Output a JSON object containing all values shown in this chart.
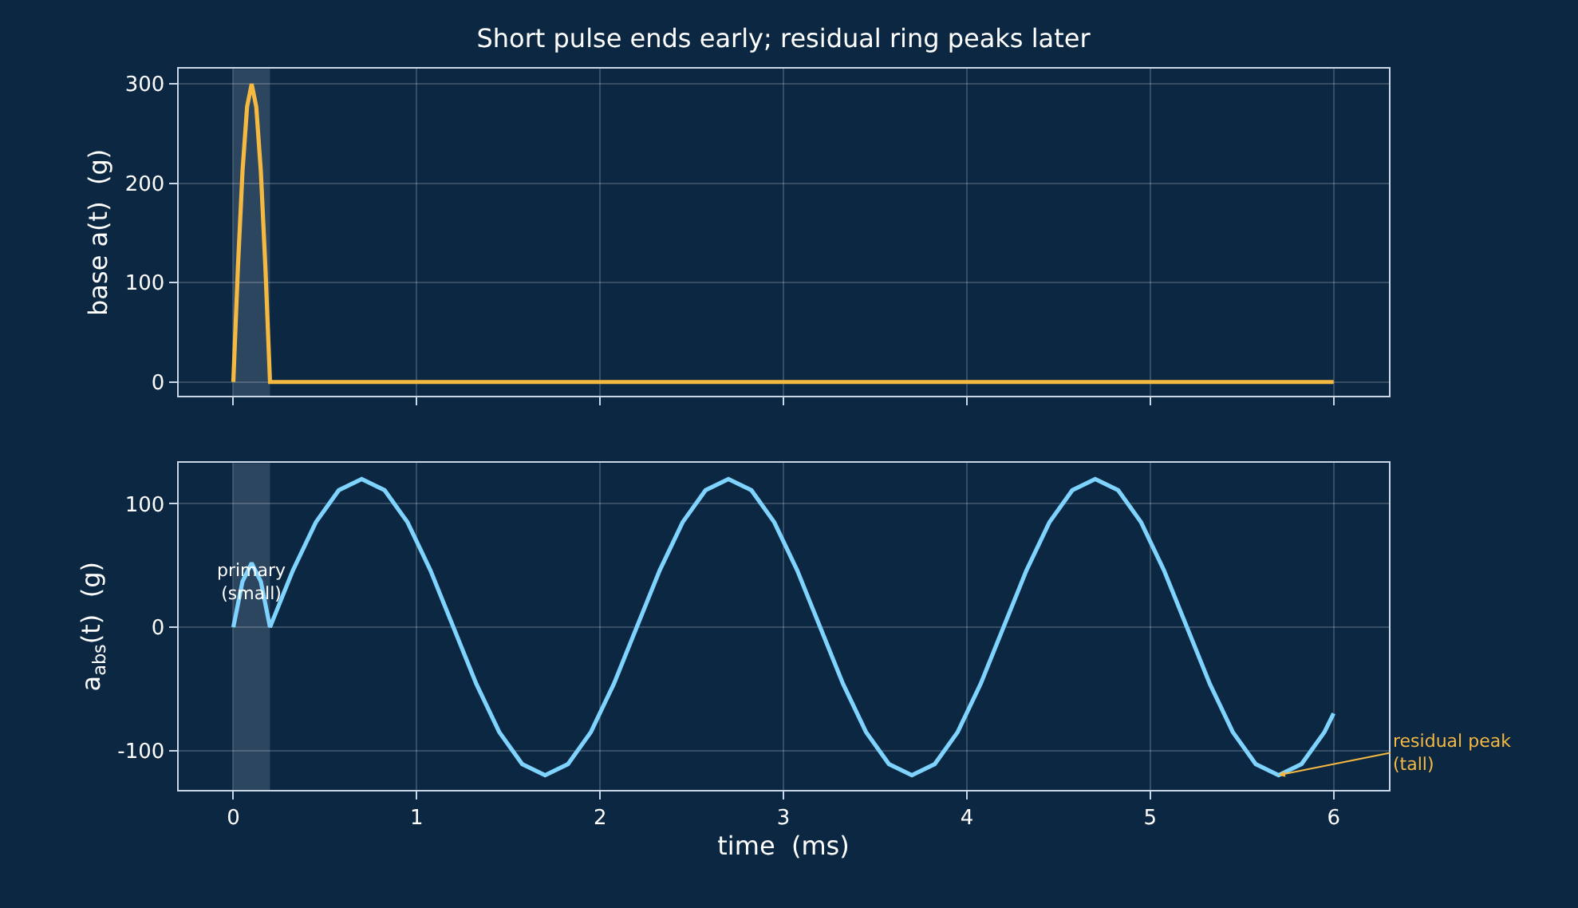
{
  "chart_data": [
    {
      "type": "line",
      "title": "Short pulse ends early; residual ring peaks later",
      "ylabel": "base a(t)  (g)",
      "xlim": [
        -0.3,
        6.3
      ],
      "xticks": [
        0,
        1,
        2,
        3,
        4,
        5,
        6
      ],
      "ylim": [
        -14,
        315
      ],
      "yticks": [
        0,
        100,
        200,
        300
      ],
      "grid": true,
      "tick_labels": "y",
      "line_style": "solid",
      "series": [
        {
          "color": "#f5b942",
          "x": [
            0,
            0.025,
            0.05,
            0.075,
            0.1,
            0.125,
            0.15,
            0.175,
            0.2,
            6
          ],
          "values": [
            0,
            115,
            212,
            277,
            300,
            277,
            212,
            115,
            0,
            0
          ]
        }
      ],
      "bands": [
        {
          "axis": "x",
          "from": 0,
          "to": 0.2,
          "color": "#c8d8e8"
        }
      ]
    },
    {
      "type": "line",
      "xlabel": "time  (ms)",
      "ylabel": "a$_{abs}$(t)  (g)",
      "xlim": [
        -0.3,
        6.3
      ],
      "xticks": [
        0,
        1,
        2,
        3,
        4,
        5,
        6
      ],
      "ylim": [
        -132,
        133
      ],
      "yticks": [
        -100,
        0,
        100
      ],
      "grid": true,
      "line_style": "solid",
      "series": [
        {
          "color": "#7fd4ff",
          "x": [
            0,
            0.05,
            0.1,
            0.15,
            0.2,
            0.325,
            0.45,
            0.575,
            0.7,
            0.825,
            0.95,
            1.075,
            1.2,
            1.325,
            1.45,
            1.575,
            1.7,
            1.825,
            1.95,
            2.075,
            2.2,
            2.325,
            2.45,
            2.575,
            2.7,
            2.825,
            2.95,
            3.075,
            3.2,
            3.325,
            3.45,
            3.575,
            3.7,
            3.825,
            3.95,
            4.075,
            4.2,
            4.325,
            4.45,
            4.575,
            4.7,
            4.825,
            4.95,
            5.075,
            5.2,
            5.325,
            5.45,
            5.575,
            5.7,
            5.825,
            5.95,
            6.0
          ],
          "values": [
            0,
            37,
            52,
            37,
            0,
            46,
            85,
            111,
            120,
            111,
            85,
            46,
            0,
            -46,
            -85,
            -111,
            -120,
            -111,
            -85,
            -46,
            0,
            46,
            85,
            111,
            120,
            111,
            85,
            46,
            0,
            -46,
            -85,
            -111,
            -120,
            -111,
            -85,
            -46,
            0,
            46,
            85,
            111,
            120,
            111,
            85,
            46,
            0,
            -46,
            -85,
            -111,
            -120,
            -111,
            -85,
            -70
          ]
        }
      ],
      "bands": [
        {
          "axis": "x",
          "from": 0,
          "to": 0.2,
          "color": "#c8d8e8"
        }
      ],
      "annotations": [
        {
          "text": "primary\n(small)",
          "x": 0.1,
          "y": 52
        },
        {
          "text": "residual peak\n(tall)",
          "x": 5.7,
          "y": -120
        }
      ]
    }
  ]
}
